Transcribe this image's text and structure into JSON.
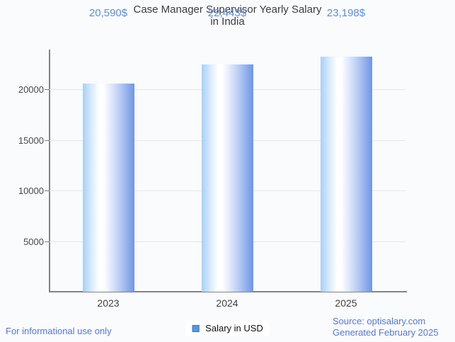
{
  "title": {
    "line1": "Case Manager Supervisor Yearly Salary",
    "line2": "in India"
  },
  "chart_data": {
    "type": "bar",
    "title": "Case Manager Supervisor Yearly Salary in India",
    "categories": [
      "2023",
      "2024",
      "2025"
    ],
    "values": [
      20590,
      22443,
      23198
    ],
    "value_labels": [
      "20,590$",
      "22,443$",
      "23,198$"
    ],
    "xlabel": "",
    "ylabel": "",
    "ylim": [
      0,
      24000
    ],
    "yticks": [
      5000,
      10000,
      15000,
      20000
    ],
    "grid": true,
    "legend_position": "bottom",
    "series_name": "Salary in USD"
  },
  "legend": {
    "label": "Salary in USD",
    "swatch_color": "#5596e8",
    "swatch_border": "#3e73c8"
  },
  "footer": {
    "left": "For informational use only",
    "source": "Source: optisalary.com",
    "generated": "Generated February 2025"
  },
  "colors": {
    "background": "#fafbfd",
    "bar_gradient_left": "#a7d0f8",
    "bar_gradient_mid": "#ffffff",
    "bar_gradient_right": "#6e96e8",
    "value_label_blue": "#5c8ce2",
    "footer_blue": "#5577d8",
    "title_gray": "#3c3c3c",
    "axis_gray": "#838383",
    "gridline_gray": "#e7e7e7"
  }
}
